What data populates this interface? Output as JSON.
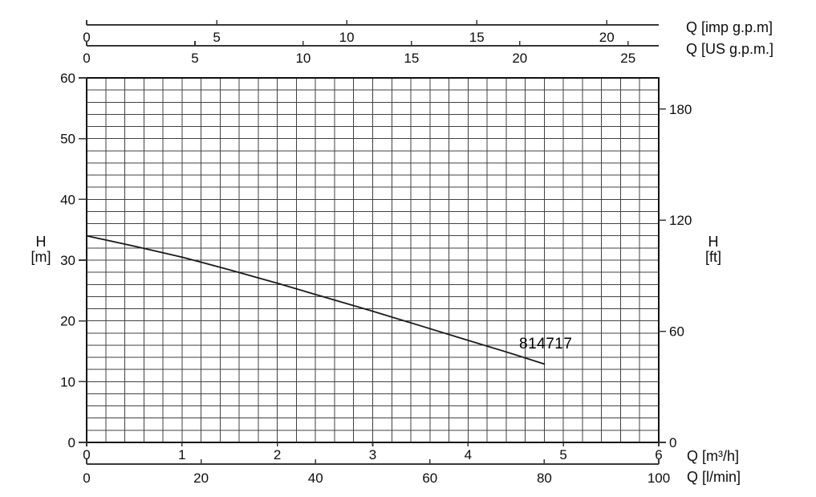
{
  "chart_data": {
    "type": "line",
    "title": "",
    "description": "Pump performance curve H-Q",
    "curve_label": "814717",
    "series": [
      {
        "name": "814717",
        "points": [
          [
            0.0,
            34.0
          ],
          [
            0.5,
            32.3
          ],
          [
            1.0,
            30.5
          ],
          [
            1.5,
            28.4
          ],
          [
            2.0,
            26.2
          ],
          [
            2.5,
            23.9
          ],
          [
            3.0,
            21.6
          ],
          [
            3.5,
            19.2
          ],
          [
            4.0,
            16.8
          ],
          [
            4.4,
            14.9
          ],
          [
            4.8,
            12.9
          ]
        ]
      }
    ],
    "axes": {
      "left": {
        "label": "H [m]",
        "range": [
          0,
          60
        ],
        "ticks": [
          0,
          10,
          20,
          30,
          40,
          50,
          60
        ]
      },
      "right": {
        "label": "H [ft]",
        "ticks": [
          0,
          60,
          120,
          180
        ],
        "m_per_ft": 0.3048
      },
      "bottom": {
        "label": "Q [m³/h]",
        "range": [
          0,
          6
        ],
        "ticks": [
          0,
          1,
          2,
          3,
          4,
          5,
          6
        ]
      },
      "bottom2": {
        "label": "Q [l/min]",
        "range": [
          0,
          100
        ],
        "ticks": [
          0,
          20,
          40,
          60,
          80,
          100
        ]
      },
      "top": {
        "label": "Q [imp g.p.m]",
        "range": [
          0,
          21.997
        ],
        "ticks": [
          0,
          5,
          10,
          15,
          20
        ]
      },
      "top2": {
        "label": "Q [US g.p.m.]",
        "range": [
          0,
          26.417
        ],
        "ticks": [
          0,
          5,
          10,
          15,
          20,
          25
        ]
      }
    },
    "grid": {
      "x_step": 0.2,
      "y_step": 2,
      "grid_on": true
    },
    "legend_position": "none"
  },
  "labels": {
    "top_imp": "Q [imp g.p.m]",
    "top_us": "Q [US g.p.m.]",
    "left_h": {
      "line1": "H",
      "line2": "[m]"
    },
    "right_h": {
      "line1": "H",
      "line2": "[ft]"
    },
    "bottom_m3h": "Q [m³/h]",
    "bottom_lmin": "Q [l/min]",
    "curve": "814717"
  },
  "colors": {
    "curve": "#1a1a1a",
    "grid": "#424242",
    "axis": "#383838",
    "border": "#111111",
    "text": "#0d0d0d",
    "background": "#ffffff"
  }
}
